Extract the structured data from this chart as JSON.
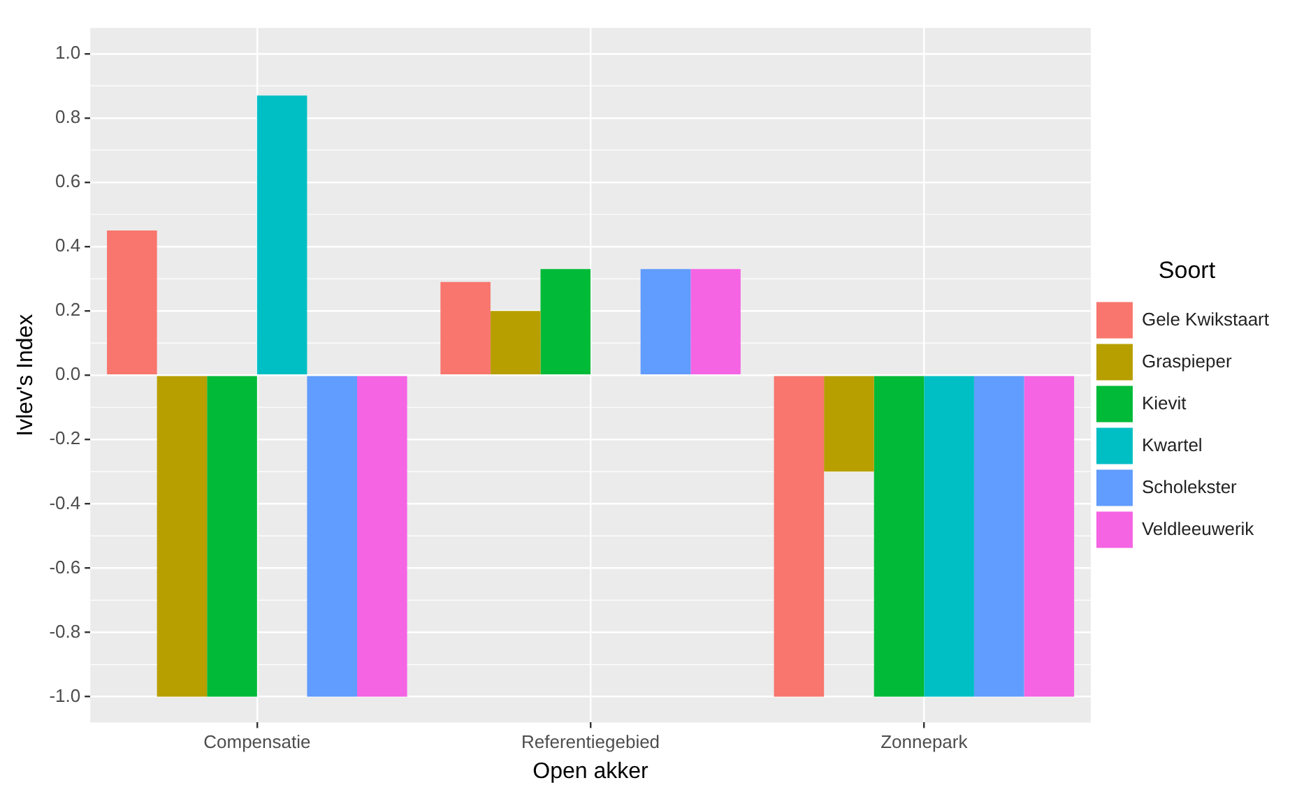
{
  "chart_data": {
    "type": "bar",
    "xlabel": "Open akker",
    "ylabel": "Ivlev's Index",
    "legend_title": "Soort",
    "legend": "right",
    "grid": true,
    "categories": [
      "Compensatie",
      "Referentiegebied",
      "Zonnepark"
    ],
    "ylim": [
      -1.08,
      1.08
    ],
    "yticks": [
      {
        "value": -1,
        "label": "-1.0"
      },
      {
        "value": -0.8,
        "label": "-0.8"
      },
      {
        "value": -0.6,
        "label": "-0.6"
      },
      {
        "value": -0.4,
        "label": "-0.4"
      },
      {
        "value": -0.2,
        "label": "-0.2"
      },
      {
        "value": 0,
        "label": "0.0"
      },
      {
        "value": 0.2,
        "label": "0.2"
      },
      {
        "value": 0.4,
        "label": "0.4"
      },
      {
        "value": 0.6,
        "label": "0.6"
      },
      {
        "value": 0.8,
        "label": "0.8"
      },
      {
        "value": 1,
        "label": "1.0"
      }
    ],
    "series": [
      {
        "name": "Gele Kwikstaart",
        "color": "#f8766d",
        "values": [
          0.45,
          0.29,
          -1
        ]
      },
      {
        "name": "Graspieper",
        "color": "#b79f00",
        "values": [
          -1,
          0.2,
          -0.3
        ]
      },
      {
        "name": "Kievit",
        "color": "#00ba38",
        "values": [
          -1,
          0.33,
          -1
        ]
      },
      {
        "name": "Kwartel",
        "color": "#00bfc4",
        "values": [
          0.87,
          null,
          -1
        ]
      },
      {
        "name": "Scholekster",
        "color": "#619cff",
        "values": [
          -1,
          0.33,
          -1
        ]
      },
      {
        "name": "Veldleeuwerik",
        "color": "#f564e3",
        "values": [
          -1,
          0.33,
          -1
        ]
      }
    ]
  }
}
